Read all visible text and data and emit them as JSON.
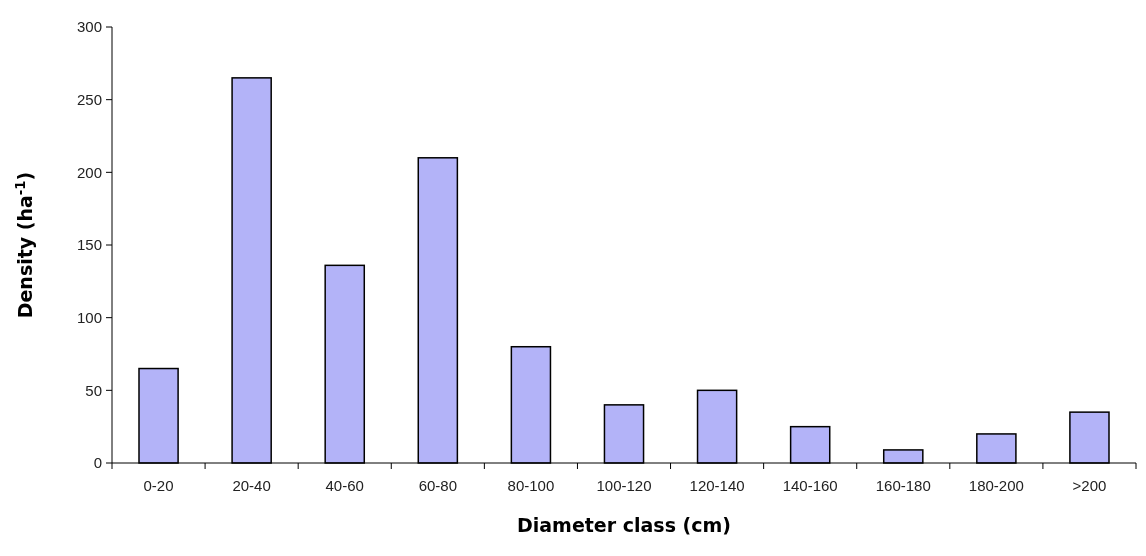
{
  "chart_data": {
    "type": "bar",
    "xlabel": "Diameter class (cm)",
    "ylabel": "Density (ha$^{-1}$)",
    "categories": [
      "0-20",
      "20-40",
      "40-60",
      "60-80",
      "80-100",
      "100-120",
      "120-140",
      "140-160",
      "160-180",
      "180-200",
      ">200"
    ],
    "values": [
      65,
      265,
      136,
      210,
      80,
      40,
      50,
      25,
      9,
      20,
      35
    ],
    "color": "#b3b3f8",
    "ylim": [
      0,
      300
    ],
    "yticks": [
      0,
      50,
      100,
      150,
      200,
      250,
      300
    ],
    "grid": false
  }
}
